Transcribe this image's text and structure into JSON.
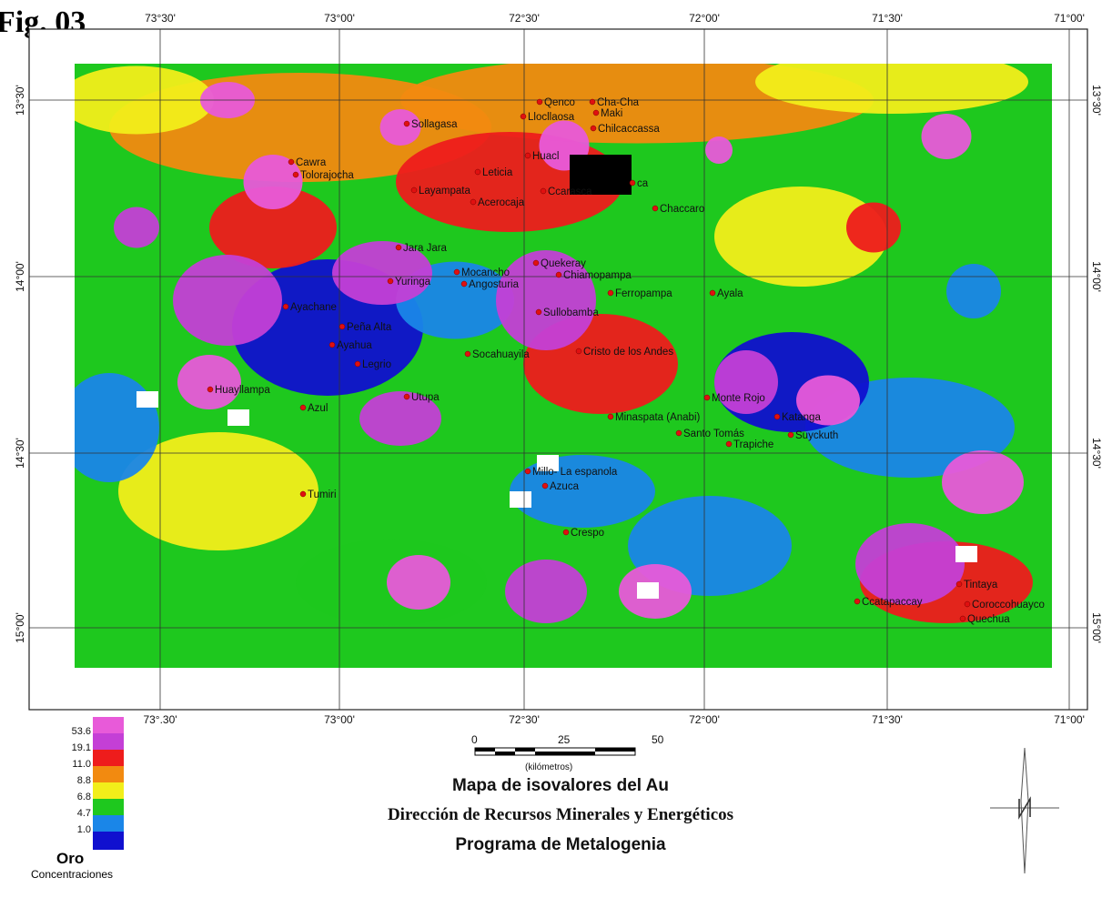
{
  "figure_label": "Fig. 03",
  "frame": {
    "top_longitudes": [
      "73°30'",
      "73°00'",
      "72°30'",
      "72°00'",
      "71°30'",
      "71°00'"
    ],
    "bottom_longitudes": [
      "73°.30'",
      "73°00'",
      "72°30'",
      "72°00'",
      "71°30'",
      "71°00'"
    ],
    "latitudes": [
      "13°30'",
      "14°00'",
      "14°30'",
      "15°00'"
    ]
  },
  "places": [
    "Qenco",
    "Cha-Cha",
    "Maki",
    "Llocllaosa",
    "Chilcaccassa",
    "Sollagasa",
    "Cawra",
    "Tolorajocha",
    "Leticia",
    "Huacl",
    "ca",
    "Layampata",
    "Acerocaja",
    "Ccarasca",
    "Chaccaro",
    "Jara Jara",
    "Yuringa",
    "Mocancho",
    "Angosturia",
    "Quekeray",
    "Chiamopampa",
    "Ferropampa",
    "Ayala",
    "Ayachane",
    "Peña Alta",
    "Ayahua",
    "Sullobamba",
    "Socahuayila",
    "Cristo de los Andes",
    "Legrio",
    "Huayllampa",
    "Azul",
    "Utupa",
    "Monte Rojo",
    "Minaspata (Anabi)",
    "Santo Tomás",
    "Katanga",
    "Suyckuth",
    "Trapiche",
    "Tumiri",
    "Millo- La espanola",
    "Azuca",
    "Crespo",
    "Tintaya",
    "Ccatapaccay",
    "Coroccohuayco",
    "Quechua"
  ],
  "legend": {
    "colors": [
      "#e85ad9",
      "#c43fd6",
      "#ee1c1c",
      "#f28a10",
      "#f2ee1a",
      "#1ec81e",
      "#1a86e8",
      "#1010cf"
    ],
    "values": [
      "53.6",
      "19.1",
      "11.0",
      "8.8",
      "6.8",
      "4.7",
      "1.0"
    ],
    "title": "Oro",
    "subtitle": "Concentraciones"
  },
  "scale": {
    "ticks": [
      "0",
      "25",
      "50"
    ],
    "unit": "(kilómetros)"
  },
  "titles": [
    "Mapa de isovalores del Au",
    "Dirección de Recursos Minerales y Energéticos",
    "Programa de Metalogenia"
  ]
}
